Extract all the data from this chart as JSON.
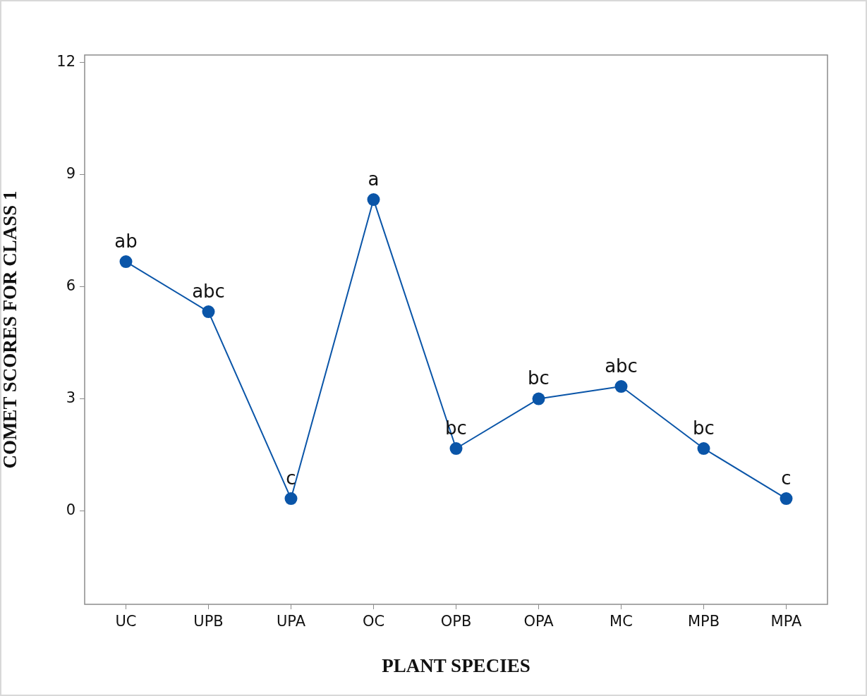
{
  "chart_data": {
    "type": "line",
    "xlabel": "PLANT SPECIES",
    "ylabel": "COMET SCORES FOR CLASS 1",
    "categories": [
      "UC",
      "UPB",
      "UPA",
      "OC",
      "OPB",
      "OPA",
      "MC",
      "MPB",
      "MPA"
    ],
    "values": [
      6.67,
      5.33,
      0.33,
      8.33,
      1.67,
      3,
      3.33,
      1.67,
      0.33
    ],
    "color": "#0a55a8",
    "marker": "circle",
    "line_style": "solid",
    "grid": false,
    "legend": false,
    "ylim": [
      -2.5,
      12.2
    ],
    "yticks": [
      0,
      3,
      6,
      9,
      12
    ],
    "annotations": [
      {
        "text": "ab",
        "x": "UC",
        "y": 6.67
      },
      {
        "text": "abc",
        "x": "UPB",
        "y": 5.33
      },
      {
        "text": "c",
        "x": "UPA",
        "y": 0.33
      },
      {
        "text": "a",
        "x": "OC",
        "y": 8.33
      },
      {
        "text": "bc",
        "x": "OPB",
        "y": 1.67
      },
      {
        "text": "bc",
        "x": "OPA",
        "y": 3
      },
      {
        "text": "abc",
        "x": "MC",
        "y": 3.33
      },
      {
        "text": "bc",
        "x": "MPB",
        "y": 1.67
      },
      {
        "text": "c",
        "x": "MPA",
        "y": 0.33
      }
    ]
  }
}
